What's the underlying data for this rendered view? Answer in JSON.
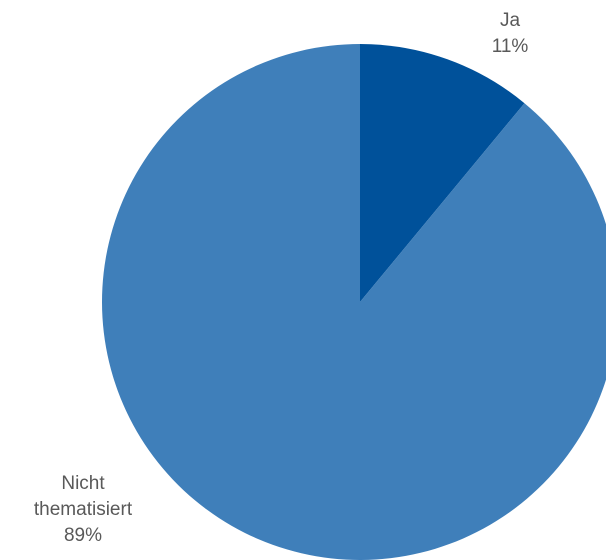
{
  "chart_data": {
    "type": "pie",
    "start_angle_deg": 0,
    "direction": "clockwise",
    "slices": [
      {
        "label": "Ja",
        "value": 11,
        "value_label": "11%",
        "color": "#00519A"
      },
      {
        "label": "Nicht thematisiert",
        "label_lines": [
          "Nicht",
          "thematisiert"
        ],
        "value": 89,
        "value_label": "89%",
        "color": "#3F7FBA"
      }
    ],
    "legend": "none",
    "data_labels": "outside"
  }
}
